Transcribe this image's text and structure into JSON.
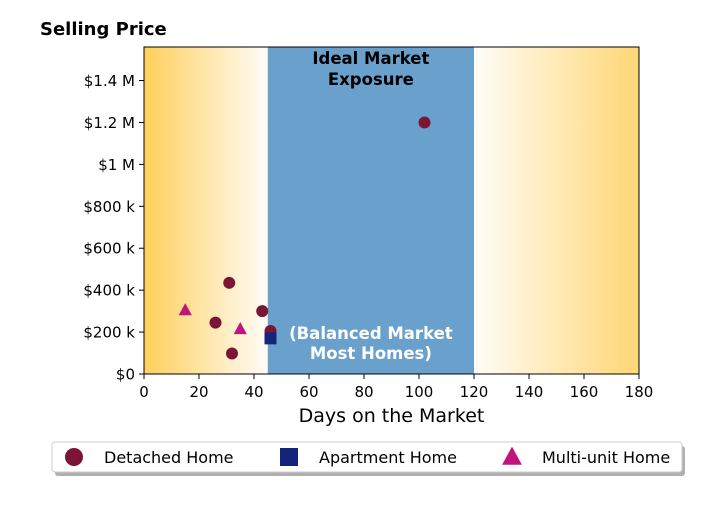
{
  "chart_data": {
    "type": "scatter",
    "title": "Selling Price",
    "xlabel": "Days on the Market",
    "ylabel": "",
    "xlim": [
      0,
      180
    ],
    "ylim": [
      0,
      1560000
    ],
    "x_ticks": [
      0,
      20,
      40,
      60,
      80,
      100,
      120,
      140,
      160,
      180
    ],
    "y_ticks": [
      {
        "value": 0,
        "label": "$0"
      },
      {
        "value": 200000,
        "label": "$200 k"
      },
      {
        "value": 400000,
        "label": "$400 k"
      },
      {
        "value": 600000,
        "label": "$600 k"
      },
      {
        "value": 800000,
        "label": "$800 k"
      },
      {
        "value": 1000000,
        "label": "$1 M"
      },
      {
        "value": 1200000,
        "label": "$1.2 M"
      },
      {
        "value": 1400000,
        "label": "$1.4 M"
      }
    ],
    "band": {
      "x_range": [
        45,
        120
      ],
      "color": "#6aa0cc",
      "title_line1": "Ideal Market",
      "title_line2": "Exposure",
      "note_line1": "(Balanced Market",
      "note_line2": "Most Homes)"
    },
    "side_gradient_color": "#ffcf5c",
    "grid": false,
    "legend_position": "bottom",
    "series": [
      {
        "name": "Detached Home",
        "marker": "circle",
        "color": "#7b1535",
        "points": [
          [
            102,
            1200000
          ],
          [
            31,
            435000
          ],
          [
            43,
            300000
          ],
          [
            26,
            245000
          ],
          [
            46,
            205000
          ],
          [
            32,
            98000
          ]
        ]
      },
      {
        "name": "Apartment Home",
        "marker": "square",
        "color": "#13247a",
        "points": [
          [
            46,
            170000
          ]
        ]
      },
      {
        "name": "Multi-unit Home",
        "marker": "triangle",
        "color": "#c0157d",
        "points": [
          [
            15,
            305000
          ],
          [
            35,
            215000
          ]
        ]
      }
    ]
  }
}
